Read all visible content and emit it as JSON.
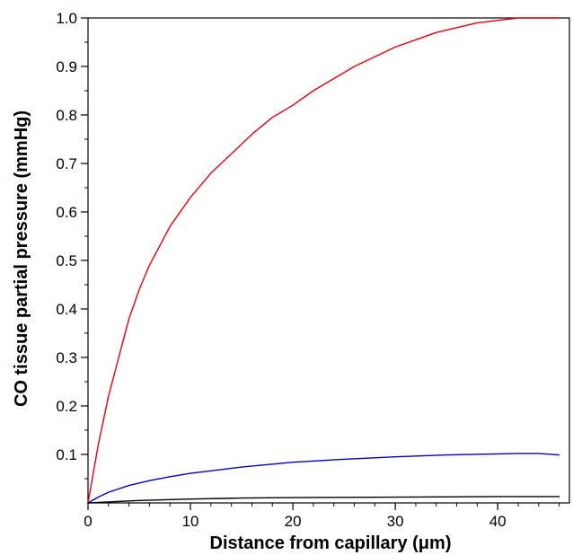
{
  "chart_data": {
    "type": "line",
    "title": "",
    "xlabel": "Distance from capillary (μm)",
    "ylabel": "CO tissue partial pressure (mmHg)",
    "xlim": [
      0,
      47
    ],
    "ylim": [
      0,
      1.0
    ],
    "grid": false,
    "legend": "none",
    "x_ticks": [
      0,
      10,
      20,
      30,
      40
    ],
    "x_tick_labels": [
      "0",
      "10",
      "20",
      "30",
      "40"
    ],
    "x_minor_step": 2,
    "y_ticks": [
      0.1,
      0.2,
      0.3,
      0.4,
      0.5,
      0.6,
      0.7,
      0.8,
      0.9,
      1.0
    ],
    "y_tick_labels": [
      "0.1",
      "0.2",
      "0.3",
      "0.4",
      "0.5",
      "0.6",
      "0.7",
      "0.8",
      "0.9",
      "1.0"
    ],
    "y_minor_step": 0.05,
    "series": [
      {
        "color": "#e8000b",
        "x": [
          0,
          1,
          2,
          3,
          4,
          5,
          6,
          8,
          10,
          12,
          14,
          16,
          18,
          20,
          22,
          24,
          26,
          28,
          30,
          32,
          34,
          36,
          38,
          40,
          42,
          44,
          46
        ],
        "y": [
          0.0,
          0.12,
          0.22,
          0.3,
          0.38,
          0.44,
          0.49,
          0.57,
          0.63,
          0.68,
          0.72,
          0.76,
          0.795,
          0.82,
          0.85,
          0.875,
          0.9,
          0.92,
          0.94,
          0.955,
          0.97,
          0.98,
          0.99,
          0.995,
          1.0,
          1.0,
          1.0
        ]
      },
      {
        "color": "#0000d0",
        "x": [
          0,
          1,
          2,
          4,
          6,
          8,
          10,
          15,
          20,
          25,
          30,
          35,
          40,
          42,
          44,
          46
        ],
        "y": [
          0.0,
          0.012,
          0.022,
          0.036,
          0.046,
          0.054,
          0.061,
          0.074,
          0.084,
          0.09,
          0.095,
          0.099,
          0.101,
          0.102,
          0.102,
          0.099
        ]
      },
      {
        "color": "#000000",
        "x": [
          0,
          2,
          5,
          10,
          15,
          20,
          30,
          40,
          46
        ],
        "y": [
          0.0,
          0.002,
          0.005,
          0.008,
          0.01,
          0.011,
          0.012,
          0.013,
          0.013
        ]
      }
    ]
  }
}
